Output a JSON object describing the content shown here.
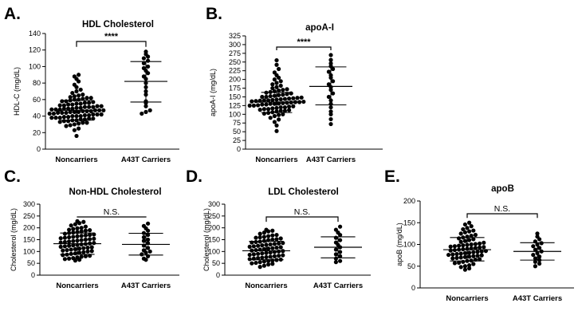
{
  "chart_data": [
    {
      "panel": "A.",
      "type": "scatter",
      "title": "HDL Cholesterol",
      "ylabel": "HDL-C (mg/dL)",
      "ylim": [
        0,
        140
      ],
      "yticks": [
        0,
        20,
        40,
        60,
        80,
        100,
        120,
        140
      ],
      "categories": [
        "Noncarriers",
        "A43T Carriers"
      ],
      "significance": "****",
      "groups": [
        {
          "name": "Noncarriers",
          "mean": 47,
          "sd_low": 35,
          "sd_high": 59,
          "values": [
            16,
            23,
            25,
            28,
            29,
            30,
            31,
            32,
            32,
            33,
            34,
            34,
            35,
            35,
            36,
            36,
            37,
            37,
            38,
            38,
            38,
            39,
            39,
            40,
            40,
            40,
            41,
            41,
            42,
            42,
            42,
            43,
            43,
            44,
            44,
            44,
            45,
            45,
            45,
            46,
            46,
            46,
            47,
            47,
            47,
            48,
            48,
            48,
            49,
            49,
            49,
            50,
            50,
            51,
            51,
            51,
            52,
            52,
            53,
            53,
            54,
            54,
            55,
            55,
            56,
            56,
            57,
            58,
            58,
            59,
            60,
            60,
            61,
            62,
            62,
            63,
            64,
            65,
            66,
            68,
            70,
            72,
            75,
            78,
            82,
            85,
            88,
            90
          ]
        },
        {
          "name": "A43T Carriers",
          "mean": 82,
          "sd_low": 57,
          "sd_high": 106,
          "values": [
            43,
            45,
            47,
            52,
            56,
            58,
            66,
            70,
            75,
            80,
            85,
            88,
            92,
            95,
            98,
            100,
            104,
            107,
            110,
            112,
            115,
            118
          ]
        }
      ]
    },
    {
      "panel": "B.",
      "type": "scatter",
      "title": "apoA-I",
      "ylabel": "apoA-I (mg/dL)",
      "ylim": [
        0,
        325
      ],
      "yticks": [
        0,
        25,
        50,
        75,
        100,
        125,
        150,
        175,
        200,
        225,
        250,
        275,
        300,
        325
      ],
      "categories": [
        "Noncarriers",
        "A43T Carriers"
      ],
      "significance": "****",
      "groups": [
        {
          "name": "Noncarriers",
          "mean": 135,
          "sd_low": 105,
          "sd_high": 163,
          "values": [
            52,
            68,
            78,
            85,
            90,
            95,
            98,
            100,
            102,
            104,
            106,
            108,
            110,
            110,
            112,
            113,
            115,
            115,
            117,
            118,
            120,
            120,
            122,
            123,
            125,
            125,
            126,
            128,
            128,
            130,
            130,
            131,
            132,
            133,
            134,
            135,
            135,
            136,
            137,
            138,
            139,
            140,
            140,
            141,
            142,
            143,
            144,
            145,
            146,
            147,
            148,
            150,
            150,
            152,
            153,
            155,
            156,
            158,
            160,
            162,
            164,
            166,
            168,
            170,
            172,
            175,
            178,
            182,
            186,
            190,
            195,
            200,
            205,
            212,
            220,
            230,
            242,
            255
          ]
        },
        {
          "name": "A43T Carriers",
          "mean": 180,
          "sd_low": 127,
          "sd_high": 236,
          "values": [
            72,
            86,
            100,
            108,
            120,
            130,
            140,
            150,
            160,
            170,
            178,
            186,
            195,
            205,
            212,
            222,
            230,
            238,
            246,
            256,
            270
          ]
        }
      ]
    },
    {
      "panel": "C.",
      "type": "scatter",
      "title": "Non-HDL Cholesterol",
      "ylabel": "Cholesterol (mg/dL)",
      "ylim": [
        0,
        300
      ],
      "yticks": [
        0,
        50,
        100,
        150,
        200,
        250,
        300
      ],
      "categories": [
        "Noncarriers",
        "A43T Carriers"
      ],
      "significance": "N.S.",
      "groups": [
        {
          "name": "Noncarriers",
          "mean": 133,
          "sd_low": 88,
          "sd_high": 178,
          "values": [
            62,
            65,
            68,
            70,
            72,
            75,
            78,
            80,
            82,
            85,
            87,
            90,
            92,
            95,
            97,
            100,
            102,
            104,
            106,
            108,
            110,
            112,
            114,
            116,
            118,
            120,
            122,
            124,
            126,
            128,
            130,
            132,
            134,
            136,
            138,
            140,
            142,
            144,
            146,
            148,
            150,
            152,
            154,
            156,
            158,
            160,
            162,
            164,
            166,
            168,
            170,
            172,
            175,
            178,
            180,
            182,
            185,
            188,
            190,
            192,
            195,
            198,
            200,
            205,
            210,
            215,
            220,
            225,
            228
          ]
        },
        {
          "name": "A43T Carriers",
          "mean": 130,
          "sd_low": 85,
          "sd_high": 177,
          "values": [
            65,
            70,
            80,
            88,
            95,
            100,
            105,
            115,
            125,
            135,
            145,
            150,
            160,
            170,
            178,
            188,
            198,
            208,
            218
          ]
        }
      ]
    },
    {
      "panel": "D.",
      "type": "scatter",
      "title": "LDL Cholesterol",
      "ylabel": "Cholesterol (mg/dL)",
      "ylim": [
        0,
        300
      ],
      "yticks": [
        0,
        50,
        100,
        150,
        200,
        250,
        300
      ],
      "categories": [
        "Noncarriers",
        "A43T Carriers"
      ],
      "significance": "N.S.",
      "groups": [
        {
          "name": "Noncarriers",
          "mean": 103,
          "sd_low": 65,
          "sd_high": 143,
          "values": [
            35,
            40,
            45,
            48,
            50,
            52,
            55,
            58,
            60,
            62,
            64,
            66,
            68,
            70,
            72,
            74,
            76,
            78,
            80,
            82,
            84,
            86,
            88,
            90,
            92,
            94,
            96,
            98,
            100,
            102,
            104,
            106,
            108,
            110,
            112,
            114,
            116,
            118,
            120,
            122,
            124,
            126,
            128,
            130,
            132,
            134,
            136,
            138,
            140,
            142,
            145,
            148,
            150,
            152,
            155,
            158,
            160,
            162,
            165,
            168,
            170,
            175,
            180,
            185,
            188,
            192
          ]
        },
        {
          "name": "A43T Carriers",
          "mean": 118,
          "sd_low": 73,
          "sd_high": 162,
          "values": [
            55,
            60,
            70,
            80,
            88,
            98,
            108,
            118,
            128,
            138,
            148,
            158,
            170,
            180,
            192,
            205
          ]
        }
      ]
    },
    {
      "panel": "E.",
      "type": "scatter",
      "title": "apoB",
      "ylabel": "apoB (mg/dL)",
      "ylim": [
        0,
        200
      ],
      "yticks": [
        0,
        50,
        100,
        150,
        200
      ],
      "categories": [
        "Noncarriers",
        "A43T Carriers"
      ],
      "significance": "N.S.",
      "groups": [
        {
          "name": "Noncarriers",
          "mean": 88,
          "sd_low": 62,
          "sd_high": 116,
          "values": [
            42,
            45,
            48,
            50,
            52,
            55,
            57,
            58,
            60,
            62,
            63,
            65,
            66,
            68,
            69,
            70,
            71,
            72,
            73,
            74,
            75,
            76,
            77,
            78,
            79,
            80,
            81,
            82,
            83,
            84,
            85,
            86,
            87,
            88,
            89,
            90,
            91,
            92,
            93,
            94,
            95,
            96,
            97,
            98,
            99,
            100,
            101,
            102,
            104,
            106,
            108,
            110,
            112,
            114,
            116,
            118,
            120,
            122,
            125,
            128,
            130,
            132,
            135,
            138,
            142,
            146,
            150
          ]
        },
        {
          "name": "A43T Carriers",
          "mean": 84,
          "sd_low": 64,
          "sd_high": 104,
          "values": [
            50,
            56,
            60,
            64,
            68,
            72,
            76,
            80,
            84,
            88,
            92,
            96,
            100,
            103,
            107,
            112,
            118,
            125
          ]
        }
      ]
    }
  ]
}
